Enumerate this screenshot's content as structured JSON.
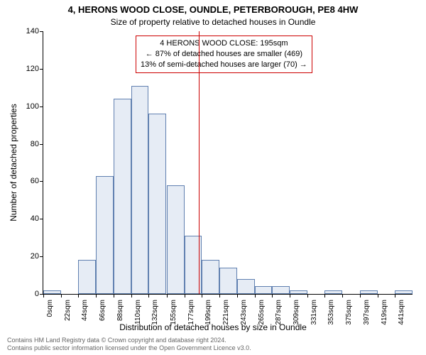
{
  "title_main": "4, HERONS WOOD CLOSE, OUNDLE, PETERBOROUGH, PE8 4HW",
  "title_sub": "Size of property relative to detached houses in Oundle",
  "y_label": "Number of detached properties",
  "x_label": "Distribution of detached houses by size in Oundle",
  "footer_line1": "Contains HM Land Registry data © Crown copyright and database right 2024.",
  "footer_line2": "Contains public sector information licensed under the Open Government Licence v3.0.",
  "chart": {
    "type": "histogram",
    "ylim": [
      0,
      140
    ],
    "ytick_step": 20,
    "bar_fill": "#e6ecf5",
    "bar_stroke": "#6080b0",
    "marker_color": "#cc0000",
    "marker_x": 195,
    "info_box": {
      "line1": "4 HERONS WOOD CLOSE: 195sqm",
      "line2": "← 87% of detached houses are smaller (469)",
      "line3": "13% of semi-detached houses are larger (70) →"
    },
    "x_ticks": [
      0,
      22,
      44,
      66,
      88,
      110,
      132,
      155,
      177,
      199,
      221,
      243,
      265,
      287,
      309,
      331,
      353,
      375,
      397,
      419,
      441
    ],
    "bars": [
      {
        "x": 0,
        "h": 2
      },
      {
        "x": 22,
        "h": 0
      },
      {
        "x": 44,
        "h": 18
      },
      {
        "x": 66,
        "h": 63
      },
      {
        "x": 88,
        "h": 104
      },
      {
        "x": 110,
        "h": 111
      },
      {
        "x": 132,
        "h": 96
      },
      {
        "x": 155,
        "h": 58
      },
      {
        "x": 177,
        "h": 31
      },
      {
        "x": 199,
        "h": 18
      },
      {
        "x": 221,
        "h": 14
      },
      {
        "x": 243,
        "h": 8
      },
      {
        "x": 265,
        "h": 4
      },
      {
        "x": 287,
        "h": 4
      },
      {
        "x": 309,
        "h": 2
      },
      {
        "x": 331,
        "h": 0
      },
      {
        "x": 353,
        "h": 2
      },
      {
        "x": 375,
        "h": 0
      },
      {
        "x": 397,
        "h": 2
      },
      {
        "x": 419,
        "h": 0
      },
      {
        "x": 441,
        "h": 2
      }
    ]
  }
}
